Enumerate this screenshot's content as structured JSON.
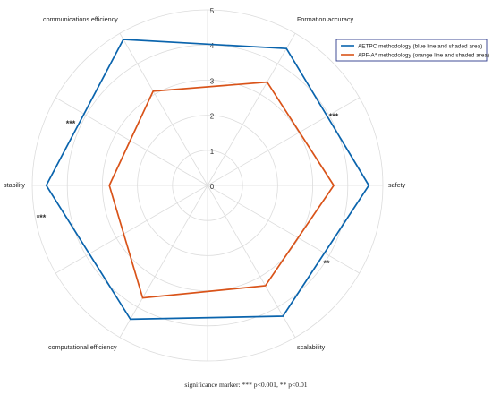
{
  "chart_data": {
    "type": "radar",
    "title": "",
    "axes": [
      "safety",
      "Formation accuracy",
      "communications efficiency",
      "stability",
      "computational efficiency",
      "scalability"
    ],
    "ticks": [
      "0",
      "1",
      "2",
      "3",
      "4",
      "5"
    ],
    "rlim": [
      0,
      5
    ],
    "grid": true,
    "legend_position": "top-right",
    "series": [
      {
        "name": "AETPC methodology (blue line and shaded area)",
        "color": "#0a64ad",
        "values": [
          4.6,
          4.5,
          4.8,
          4.6,
          4.4,
          4.3
        ]
      },
      {
        "name": "APF-A* methodology (orange line and shaded area)",
        "color": "#d95319",
        "values": [
          3.6,
          3.4,
          3.1,
          2.8,
          3.7,
          3.3
        ]
      }
    ],
    "significance": [
      {
        "text": "***"
      },
      {
        "text": "***"
      },
      {
        "text": "***"
      },
      {
        "text": "**"
      }
    ],
    "footnote": "significance marker: *** p<0.001, ** p<0.01"
  }
}
